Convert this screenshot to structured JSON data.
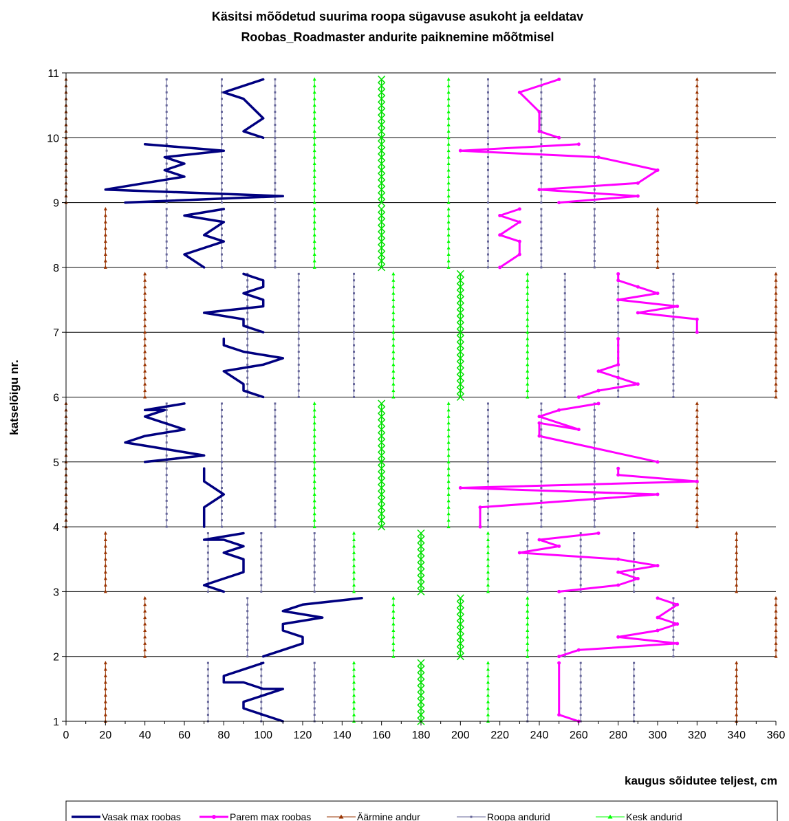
{
  "chart_data": {
    "type": "line",
    "title": "Käsitsi mõõdetud suurima roopa sügavuse asukoht ja eeldatav",
    "subtitle": "Roobas_Roadmaster andurite paiknemine mõõtmisel",
    "xlabel": "kaugus sõidutee teljest, cm",
    "ylabel": "katselõigu nr.",
    "xlim": [
      0,
      360
    ],
    "ylim": [
      1,
      11
    ],
    "x_ticks": [
      "0",
      "20",
      "40",
      "60",
      "80",
      "100",
      "120",
      "140",
      "160",
      "180",
      "200",
      "220",
      "240",
      "260",
      "280",
      "300",
      "320",
      "340",
      "360"
    ],
    "y_ticks": [
      "1",
      "2",
      "3",
      "4",
      "5",
      "6",
      "7",
      "8",
      "9",
      "10",
      "11"
    ],
    "grid": "horizontal",
    "legend_position": "bottom",
    "colors": {
      "vasak": "#000080",
      "parem": "#ff00ff",
      "aarmine": "#993300",
      "roopa": "#666699",
      "kesk": "#00ff00",
      "center": "#00e000"
    },
    "legend": [
      {
        "key": "vasak",
        "label": "Vasak max roobas"
      },
      {
        "key": "parem",
        "label": "Parem max roobas"
      },
      {
        "key": "aarmine",
        "label": "Äärmine andur"
      },
      {
        "key": "roopa",
        "label": "Roopa andurid"
      },
      {
        "key": "kesk",
        "label": "Kesk andurid"
      }
    ],
    "sections": [
      {
        "y": [
          1,
          1.9
        ],
        "aarmine": [
          20,
          340
        ],
        "roopa": [
          72,
          99,
          126,
          234,
          261,
          288
        ],
        "kesk": [
          146,
          214
        ],
        "center": 180
      },
      {
        "y": [
          2,
          2.9
        ],
        "aarmine": [
          40,
          360
        ],
        "roopa": [
          92,
          253,
          308
        ],
        "kesk": [
          166,
          234
        ],
        "center": 200
      },
      {
        "y": [
          3,
          3.9
        ],
        "aarmine": [
          20,
          340
        ],
        "roopa": [
          72,
          99,
          126,
          234,
          261,
          288
        ],
        "kesk": [
          146,
          214
        ],
        "center": 180
      },
      {
        "y": [
          4,
          5.9
        ],
        "aarmine": [
          0,
          320
        ],
        "roopa": [
          51,
          79,
          106,
          214,
          241,
          268
        ],
        "kesk": [
          126,
          194
        ],
        "center": 160
      },
      {
        "y": [
          6,
          7.9
        ],
        "aarmine": [
          40,
          360
        ],
        "roopa": [
          92,
          118,
          146,
          253,
          280,
          308
        ],
        "kesk": [
          166,
          234
        ],
        "center": 200
      },
      {
        "y": [
          8,
          8.9
        ],
        "aarmine": [
          20,
          300
        ],
        "roopa": [
          51,
          79,
          106,
          214,
          241,
          268
        ],
        "kesk": [
          126,
          194
        ],
        "center": 160
      },
      {
        "y": [
          9,
          10.9
        ],
        "aarmine": [
          0,
          320
        ],
        "roopa": [
          51,
          79,
          106,
          214,
          241,
          268
        ],
        "kesk": [
          126,
          194
        ],
        "center": 160
      }
    ],
    "series": [
      {
        "name": "Vasak max roobas",
        "key": "vasak",
        "points": [
          [
            [
              110,
              1
            ],
            [
              100,
              1.1
            ],
            [
              90,
              1.2
            ],
            [
              90,
              1.3
            ],
            [
              100,
              1.4
            ],
            [
              110,
              1.5
            ],
            [
              100,
              1.5
            ],
            [
              90,
              1.6
            ],
            [
              80,
              1.6
            ],
            [
              80,
              1.7
            ],
            [
              90,
              1.8
            ],
            [
              100,
              1.9
            ]
          ],
          [
            [
              100,
              2
            ],
            [
              110,
              2.1
            ],
            [
              120,
              2.2
            ],
            [
              120,
              2.3
            ],
            [
              110,
              2.4
            ],
            [
              110,
              2.5
            ],
            [
              130,
              2.6
            ],
            [
              110,
              2.7
            ],
            [
              120,
              2.8
            ],
            [
              150,
              2.9
            ]
          ],
          [
            [
              80,
              3
            ],
            [
              70,
              3.1
            ],
            [
              80,
              3.2
            ],
            [
              90,
              3.3
            ],
            [
              90,
              3.5
            ],
            [
              80,
              3.6
            ],
            [
              90,
              3.7
            ],
            [
              80,
              3.8
            ],
            [
              70,
              3.8
            ],
            [
              90,
              3.9
            ]
          ],
          [
            [
              70,
              4
            ],
            [
              70,
              4.3
            ],
            [
              80,
              4.5
            ],
            [
              70,
              4.7
            ],
            [
              70,
              4.9
            ]
          ],
          [
            [
              40,
              5
            ],
            [
              70,
              5.1
            ],
            [
              50,
              5.2
            ],
            [
              30,
              5.3
            ],
            [
              40,
              5.4
            ],
            [
              60,
              5.5
            ],
            [
              50,
              5.6
            ],
            [
              40,
              5.7
            ],
            [
              50,
              5.8
            ],
            [
              40,
              5.8
            ],
            [
              60,
              5.9
            ]
          ],
          [
            [
              100,
              6
            ],
            [
              90,
              6.1
            ],
            [
              90,
              6.2
            ],
            [
              80,
              6.4
            ],
            [
              100,
              6.5
            ],
            [
              110,
              6.6
            ],
            [
              90,
              6.7
            ],
            [
              80,
              6.8
            ],
            [
              80,
              6.9
            ]
          ],
          [
            [
              100,
              7
            ],
            [
              90,
              7.1
            ],
            [
              90,
              7.2
            ],
            [
              70,
              7.3
            ],
            [
              100,
              7.4
            ],
            [
              100,
              7.5
            ],
            [
              90,
              7.6
            ],
            [
              100,
              7.7
            ],
            [
              100,
              7.8
            ],
            [
              90,
              7.9
            ]
          ],
          [
            [
              70,
              8
            ],
            [
              60,
              8.2
            ],
            [
              80,
              8.4
            ],
            [
              70,
              8.5
            ],
            [
              80,
              8.7
            ],
            [
              60,
              8.8
            ],
            [
              80,
              8.9
            ]
          ],
          [
            [
              30,
              9
            ],
            [
              110,
              9.1
            ],
            [
              20,
              9.2
            ],
            [
              60,
              9.4
            ],
            [
              50,
              9.5
            ],
            [
              60,
              9.6
            ],
            [
              50,
              9.7
            ],
            [
              80,
              9.8
            ],
            [
              40,
              9.9
            ]
          ],
          [
            [
              100,
              10
            ],
            [
              90,
              10.1
            ],
            [
              100,
              10.3
            ],
            [
              90,
              10.6
            ],
            [
              80,
              10.7
            ],
            [
              100,
              10.9
            ]
          ]
        ]
      },
      {
        "name": "Parem max roobas",
        "key": "parem",
        "points": [
          [
            [
              260,
              1
            ],
            [
              250,
              1.1
            ],
            [
              250,
              1.9
            ]
          ],
          [
            [
              250,
              2
            ],
            [
              260,
              2.1
            ],
            [
              310,
              2.2
            ],
            [
              280,
              2.3
            ],
            [
              300,
              2.4
            ],
            [
              310,
              2.5
            ],
            [
              300,
              2.6
            ],
            [
              310,
              2.8
            ],
            [
              300,
              2.9
            ]
          ],
          [
            [
              250,
              3
            ],
            [
              280,
              3.1
            ],
            [
              290,
              3.2
            ],
            [
              280,
              3.3
            ],
            [
              300,
              3.4
            ],
            [
              280,
              3.5
            ],
            [
              230,
              3.6
            ],
            [
              250,
              3.7
            ],
            [
              240,
              3.8
            ],
            [
              270,
              3.9
            ]
          ],
          [
            [
              210,
              4
            ],
            [
              210,
              4.3
            ],
            [
              300,
              4.5
            ],
            [
              200,
              4.6
            ],
            [
              320,
              4.7
            ],
            [
              280,
              4.8
            ],
            [
              280,
              4.9
            ]
          ],
          [
            [
              300,
              5
            ],
            [
              240,
              5.4
            ],
            [
              240,
              5.6
            ],
            [
              260,
              5.5
            ],
            [
              240,
              5.7
            ],
            [
              250,
              5.8
            ],
            [
              270,
              5.9
            ]
          ],
          [
            [
              260,
              6
            ],
            [
              270,
              6.1
            ],
            [
              290,
              6.2
            ],
            [
              280,
              6.3
            ],
            [
              270,
              6.4
            ],
            [
              280,
              6.5
            ],
            [
              280,
              6.9
            ]
          ],
          [
            [
              320,
              7
            ],
            [
              320,
              7.2
            ],
            [
              290,
              7.3
            ],
            [
              310,
              7.4
            ],
            [
              280,
              7.5
            ],
            [
              300,
              7.6
            ],
            [
              290,
              7.7
            ],
            [
              280,
              7.8
            ],
            [
              280,
              7.9
            ]
          ],
          [
            [
              220,
              8
            ],
            [
              230,
              8.2
            ],
            [
              230,
              8.4
            ],
            [
              220,
              8.5
            ],
            [
              230,
              8.7
            ],
            [
              220,
              8.8
            ],
            [
              230,
              8.9
            ]
          ],
          [
            [
              250,
              9
            ],
            [
              290,
              9.1
            ],
            [
              240,
              9.2
            ],
            [
              290,
              9.3
            ],
            [
              300,
              9.5
            ],
            [
              270,
              9.7
            ],
            [
              200,
              9.8
            ],
            [
              260,
              9.9
            ]
          ],
          [
            [
              250,
              10
            ],
            [
              240,
              10.1
            ],
            [
              240,
              10.4
            ],
            [
              230,
              10.7
            ],
            [
              250,
              10.9
            ]
          ]
        ]
      }
    ]
  }
}
